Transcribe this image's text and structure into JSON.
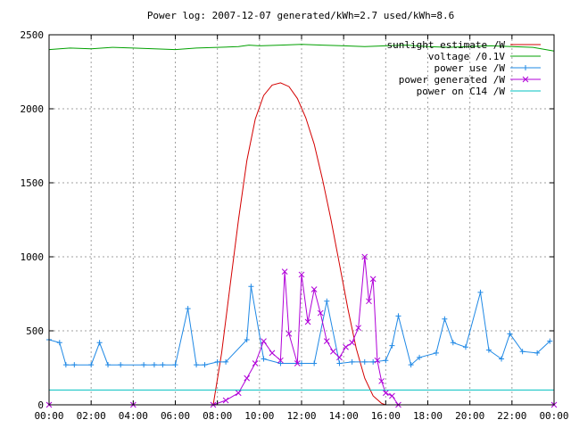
{
  "chart_data": {
    "type": "line",
    "title": "Power log: 2007-12-07 generated/kWh=2.7 used/kWh=8.6",
    "xlabel": "",
    "ylabel": "",
    "xlim": [
      0,
      24
    ],
    "ylim": [
      0,
      2500
    ],
    "x_ticks": [
      "00:00",
      "02:00",
      "04:00",
      "06:00",
      "08:00",
      "10:00",
      "12:00",
      "14:00",
      "16:00",
      "18:00",
      "20:00",
      "22:00",
      "00:00"
    ],
    "y_ticks": [
      "0",
      "500",
      "1000",
      "1500",
      "2000",
      "2500"
    ],
    "grid": true,
    "legend_position": "top-right",
    "series": [
      {
        "name": "sunlight estimate /W",
        "color": "#d40000",
        "style": "line",
        "x": [
          7.8,
          8.2,
          8.6,
          9.0,
          9.4,
          9.8,
          10.2,
          10.6,
          11.0,
          11.4,
          11.8,
          12.2,
          12.6,
          13.0,
          13.4,
          13.8,
          14.2,
          14.6,
          15.0,
          15.4,
          15.8,
          16.0
        ],
        "values": [
          0,
          350,
          800,
          1250,
          1650,
          1930,
          2090,
          2160,
          2175,
          2150,
          2070,
          1940,
          1760,
          1520,
          1250,
          950,
          650,
          380,
          180,
          60,
          10,
          0
        ]
      },
      {
        "name": "voltage /0.1V",
        "color": "#00a000",
        "style": "line",
        "x": [
          0,
          1,
          2,
          3,
          4,
          5,
          6,
          7,
          8,
          9,
          9.5,
          10,
          11,
          12,
          13,
          14,
          15,
          16,
          17,
          18,
          19,
          20,
          21,
          22,
          23,
          24
        ],
        "values": [
          2400,
          2410,
          2405,
          2415,
          2410,
          2405,
          2400,
          2410,
          2415,
          2420,
          2430,
          2425,
          2430,
          2435,
          2430,
          2425,
          2420,
          2425,
          2430,
          2420,
          2415,
          2420,
          2425,
          2420,
          2415,
          2390
        ]
      },
      {
        "name": "power use /W",
        "color": "#1e88e5",
        "style": "linespoints",
        "x": [
          0,
          0.5,
          0.8,
          1.2,
          2.0,
          2.4,
          2.8,
          3.4,
          4.5,
          5.0,
          5.4,
          6.0,
          6.6,
          7.0,
          7.4,
          8.0,
          8.4,
          9.4,
          9.6,
          10.2,
          11.0,
          12.0,
          12.6,
          13.2,
          13.8,
          14.4,
          15.0,
          15.4,
          16.0,
          16.3,
          16.6,
          17.2,
          17.6,
          18.4,
          18.8,
          19.2,
          19.8,
          20.5,
          20.9,
          21.5,
          21.9,
          22.5,
          23.2,
          23.8
        ],
        "values": [
          440,
          420,
          270,
          270,
          270,
          420,
          270,
          270,
          270,
          270,
          270,
          270,
          650,
          270,
          270,
          290,
          290,
          440,
          800,
          310,
          280,
          280,
          280,
          700,
          280,
          290,
          290,
          290,
          300,
          400,
          600,
          270,
          320,
          350,
          580,
          420,
          390,
          760,
          370,
          310,
          480,
          360,
          350,
          430
        ]
      },
      {
        "name": "power generated /W",
        "color": "#b000d8",
        "style": "linespoints",
        "x": [
          0,
          4,
          7.8,
          8.4,
          9.0,
          9.4,
          9.8,
          10.2,
          10.6,
          11.0,
          11.2,
          11.4,
          11.8,
          12.0,
          12.3,
          12.6,
          12.9,
          13.2,
          13.5,
          13.8,
          14.1,
          14.4,
          14.7,
          15.0,
          15.2,
          15.4,
          15.6,
          15.8,
          16.0,
          16.3,
          16.6,
          24
        ],
        "values": [
          0,
          0,
          0,
          30,
          80,
          180,
          280,
          430,
          350,
          300,
          900,
          480,
          280,
          880,
          560,
          780,
          620,
          430,
          360,
          320,
          390,
          420,
          520,
          1000,
          700,
          850,
          300,
          160,
          80,
          60,
          0,
          0
        ]
      },
      {
        "name": "power on C14 /W",
        "color": "#00c0c0",
        "style": "line",
        "x": [
          0,
          24
        ],
        "values": [
          100,
          100
        ]
      }
    ]
  }
}
